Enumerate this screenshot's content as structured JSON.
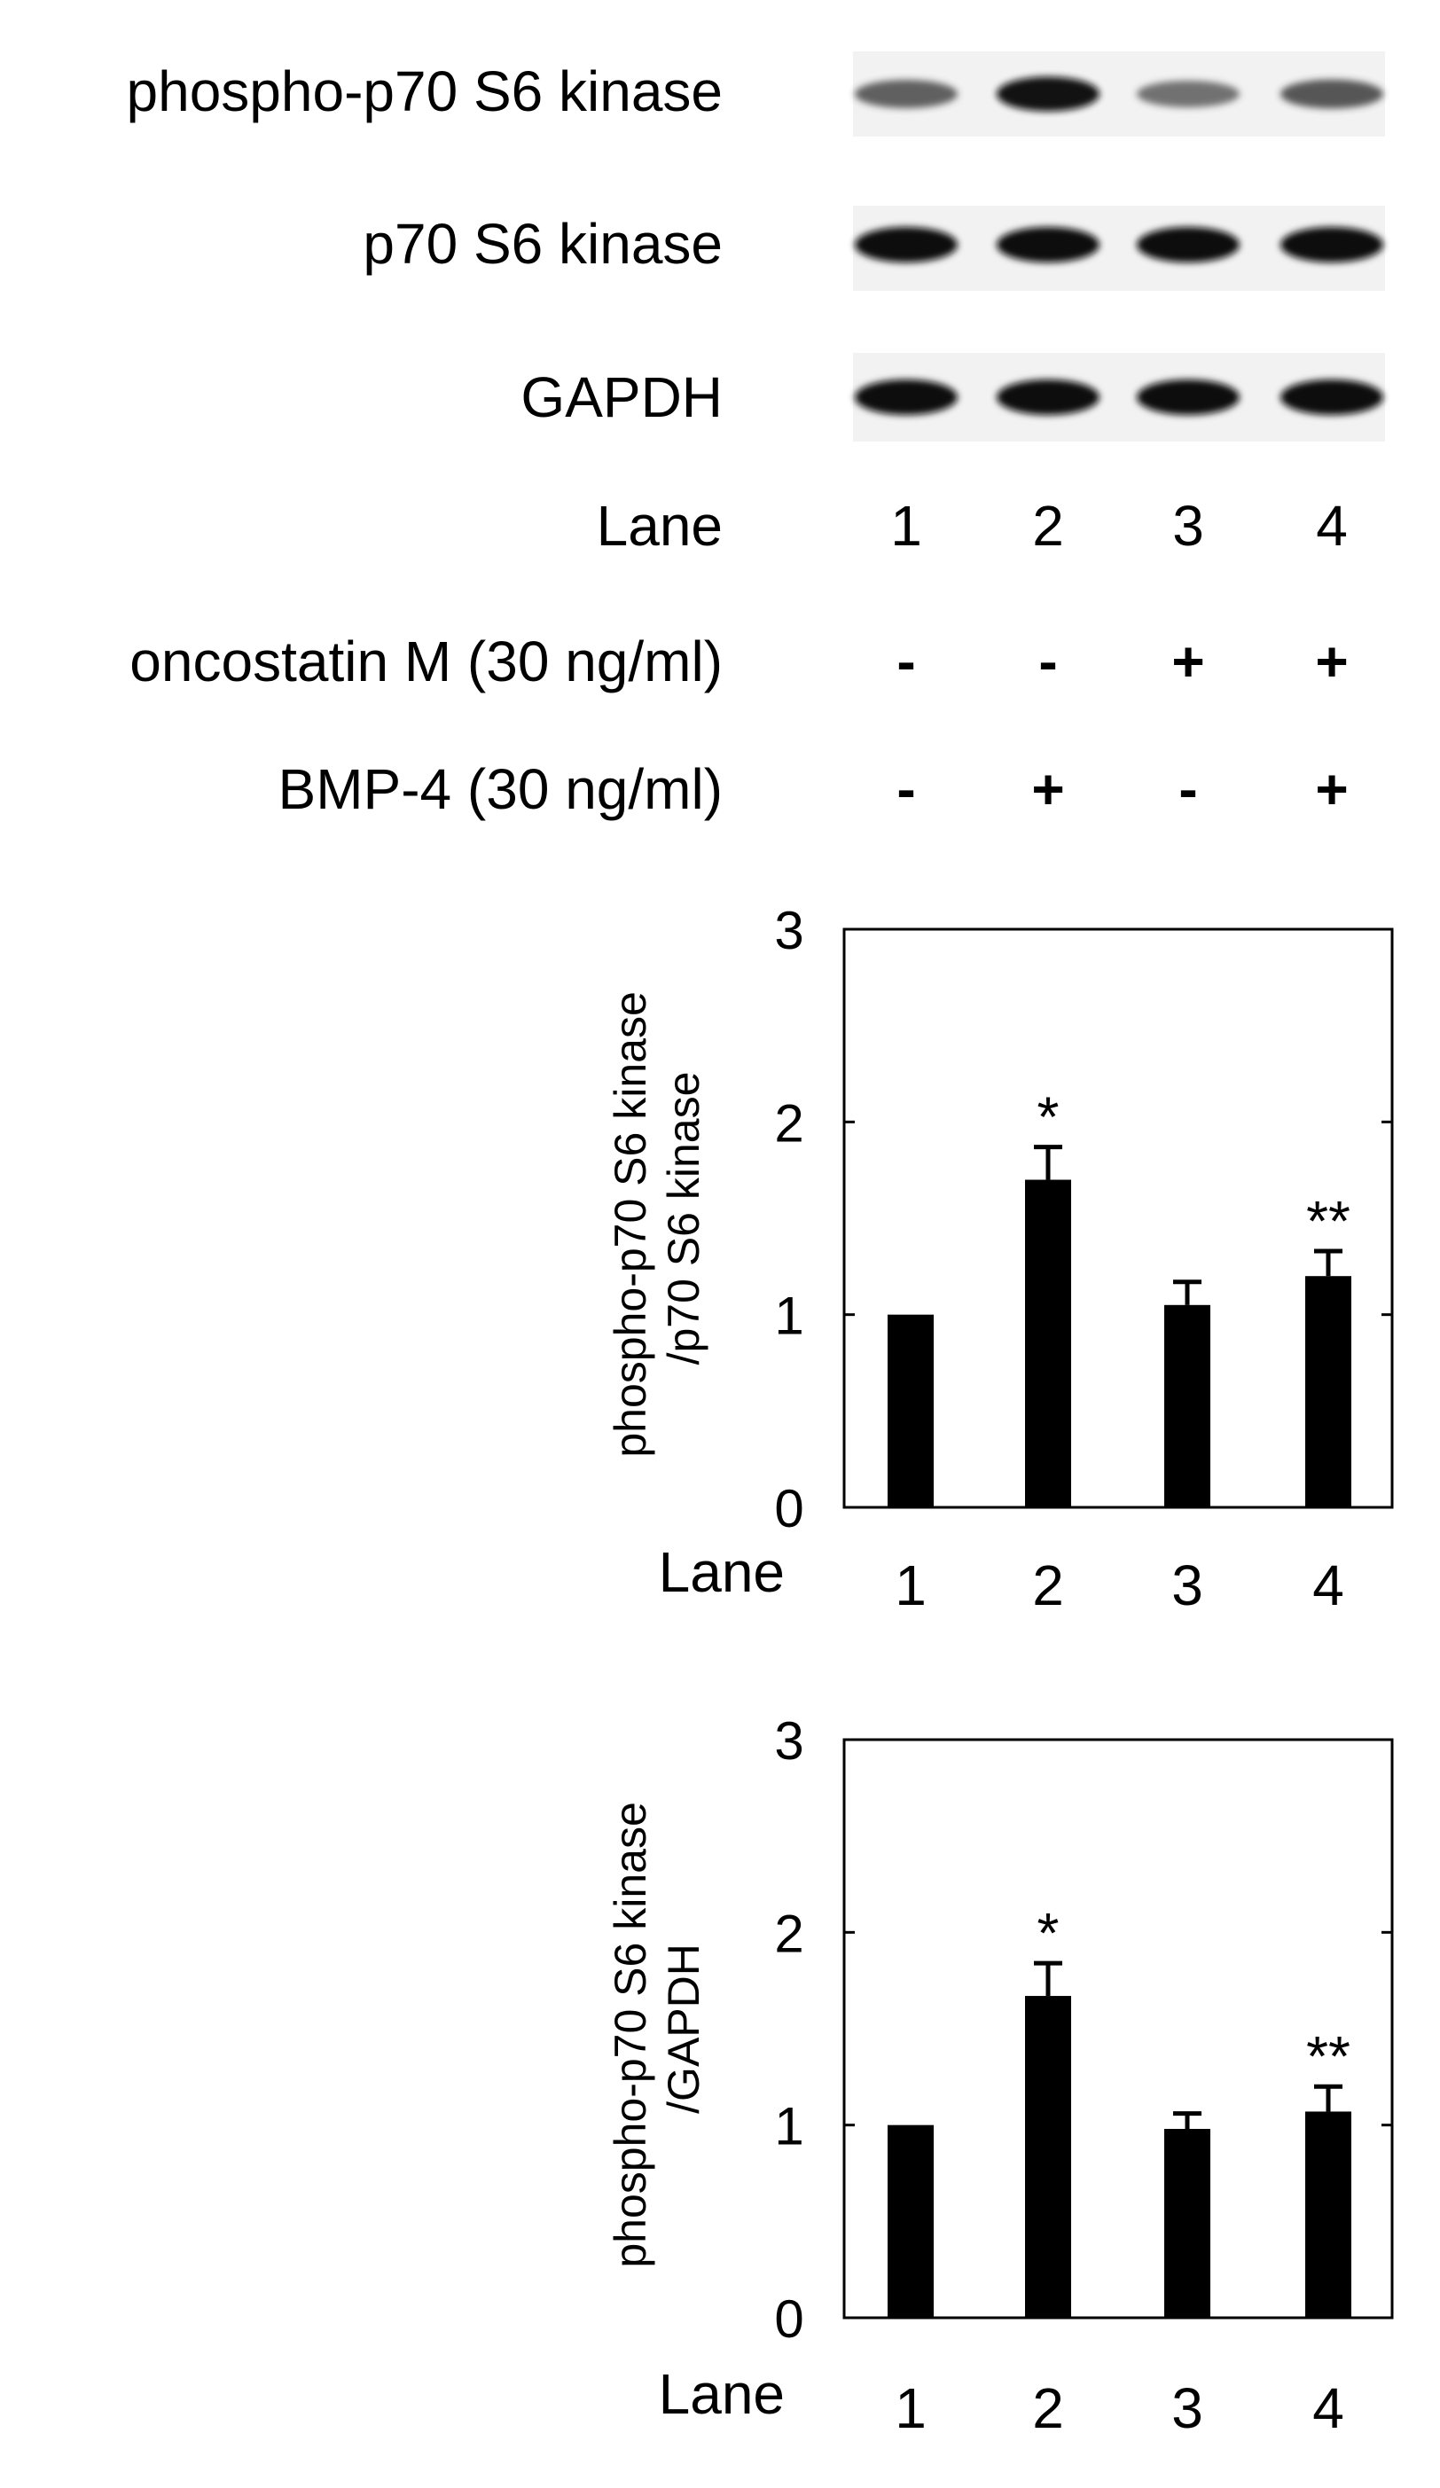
{
  "blot": {
    "rows": [
      {
        "label": "phospho-p70 S6 kinase",
        "band_intensity": [
          0.55,
          0.95,
          0.45,
          0.6
        ]
      },
      {
        "label": "p70 S6 kinase",
        "band_intensity": [
          1.0,
          1.0,
          1.0,
          1.0
        ]
      },
      {
        "label": "GAPDH",
        "band_intensity": [
          1.0,
          1.0,
          1.0,
          1.0
        ]
      }
    ],
    "lane_label": "Lane",
    "lanes": [
      "1",
      "2",
      "3",
      "4"
    ],
    "treatments": [
      {
        "label": "oncostatin M (30 ng/ml)",
        "values": [
          "-",
          "-",
          "+",
          "+"
        ]
      },
      {
        "label": "BMP-4 (30 ng/ml)",
        "values": [
          "-",
          "+",
          "-",
          "+"
        ]
      }
    ]
  },
  "chart_data": [
    {
      "type": "bar",
      "ylabel_lines": [
        "phospho-p70 S6 kinase",
        "/p70 S6 kinase"
      ],
      "xlabel": "Lane",
      "categories": [
        "1",
        "2",
        "3",
        "4"
      ],
      "values": [
        1.0,
        1.7,
        1.05,
        1.2
      ],
      "errors": [
        0,
        0.17,
        0.12,
        0.13
      ],
      "annotations": [
        "",
        "*",
        "",
        "**"
      ],
      "ylim": [
        0,
        3
      ],
      "yticks": [
        0,
        1,
        2,
        3
      ],
      "bar_color": "#000000"
    },
    {
      "type": "bar",
      "ylabel_lines": [
        "phospho-p70 S6 kinase",
        "/GAPDH"
      ],
      "xlabel": "Lane",
      "categories": [
        "1",
        "2",
        "3",
        "4"
      ],
      "values": [
        1.0,
        1.67,
        0.98,
        1.07
      ],
      "errors": [
        0,
        0.17,
        0.08,
        0.13
      ],
      "annotations": [
        "",
        "*",
        "",
        "**"
      ],
      "ylim": [
        0,
        3
      ],
      "yticks": [
        0,
        1,
        2,
        3
      ],
      "bar_color": "#000000"
    }
  ]
}
